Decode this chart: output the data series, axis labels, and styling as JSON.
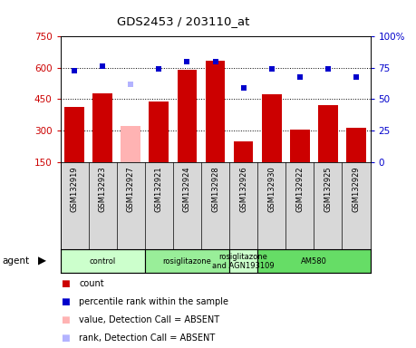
{
  "title": "GDS2453 / 203110_at",
  "samples": [
    "GSM132919",
    "GSM132923",
    "GSM132927",
    "GSM132921",
    "GSM132924",
    "GSM132928",
    "GSM132926",
    "GSM132930",
    "GSM132922",
    "GSM132925",
    "GSM132929"
  ],
  "bar_values": [
    415,
    480,
    320,
    440,
    590,
    635,
    250,
    475,
    305,
    420,
    315
  ],
  "bar_colors": [
    "#cc0000",
    "#cc0000",
    "#ffb3b3",
    "#cc0000",
    "#cc0000",
    "#cc0000",
    "#cc0000",
    "#cc0000",
    "#cc0000",
    "#cc0000",
    "#cc0000"
  ],
  "rank_values": [
    73,
    76,
    null,
    74,
    80,
    80,
    59,
    74,
    68,
    74,
    68
  ],
  "rank_absent": [
    null,
    null,
    62,
    null,
    null,
    null,
    null,
    null,
    null,
    null,
    null
  ],
  "ylim_left": [
    150,
    750
  ],
  "ylim_right": [
    0,
    100
  ],
  "yticks_left": [
    150,
    300,
    450,
    600,
    750
  ],
  "yticks_right": [
    0,
    25,
    50,
    75,
    100
  ],
  "grid_values": [
    300,
    450,
    600
  ],
  "agent_groups": [
    {
      "label": "control",
      "start": 0,
      "end": 2,
      "color": "#ccffcc"
    },
    {
      "label": "rosiglitazone",
      "start": 3,
      "end": 5,
      "color": "#99ee99"
    },
    {
      "label": "rosiglitazone\nand AGN193109",
      "start": 6,
      "end": 6,
      "color": "#ccffcc"
    },
    {
      "label": "AM580",
      "start": 7,
      "end": 10,
      "color": "#66dd66"
    }
  ],
  "legend_items": [
    {
      "color": "#cc0000",
      "label": "count"
    },
    {
      "color": "#0000cc",
      "label": "percentile rank within the sample"
    },
    {
      "color": "#ffb3b3",
      "label": "value, Detection Call = ABSENT"
    },
    {
      "color": "#b3b3ff",
      "label": "rank, Detection Call = ABSENT"
    }
  ],
  "ylabel_left_color": "#cc0000",
  "ylabel_right_color": "#0000cc"
}
